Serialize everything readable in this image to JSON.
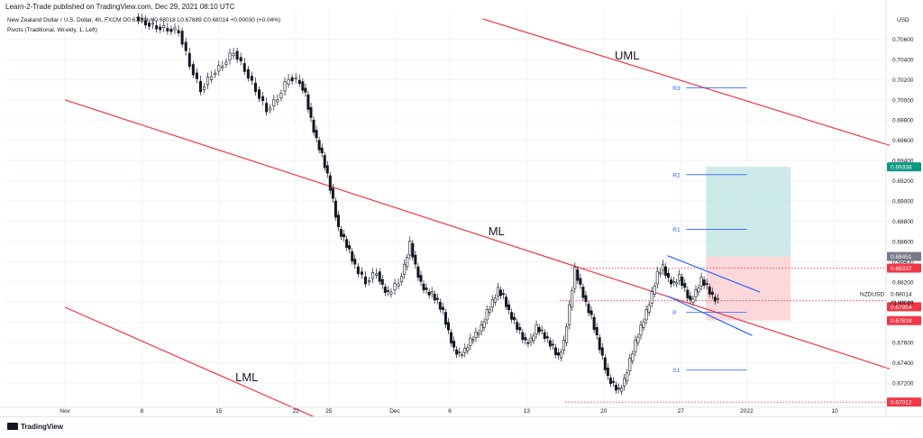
{
  "header": {
    "published": "Learn-2-Trade published on TradingView.com, Dec 29, 2021 08:10 UTC",
    "symbol_line": "New Zealand Dollar / U.S. Dollar, 4h, FXCM",
    "ohlc": "O0.67984  H0.68018  L0.67889  C0.68014  +0.00030 (+0.04%)",
    "indicator": "Pivots (Traditional, Weekly, 1, Left)"
  },
  "footer": {
    "brand": "TradingView"
  },
  "chart_data": {
    "type": "candlestick",
    "currency_label": "USD",
    "ylim": [
      0.6696,
      0.7088
    ],
    "y_ticks": [
      "0.70600",
      "0.70400",
      "0.70200",
      "0.70000",
      "0.69800",
      "0.69600",
      "0.69400",
      "0.69200",
      "0.69000",
      "0.68800",
      "0.68600",
      "0.68400",
      "0.68200",
      "0.68000",
      "0.67800",
      "0.67600",
      "0.67400",
      "0.67200"
    ],
    "x_ticks": [
      {
        "label": "Nov",
        "day": 0
      },
      {
        "label": "8",
        "day": 7
      },
      {
        "label": "15",
        "day": 14
      },
      {
        "label": "22",
        "day": 21
      },
      {
        "label": "25",
        "day": 24
      },
      {
        "label": "Dec",
        "day": 30
      },
      {
        "label": "6",
        "day": 35
      },
      {
        "label": "13",
        "day": 42
      },
      {
        "label": "20",
        "day": 49
      },
      {
        "label": "27",
        "day": 56
      },
      {
        "label": "2022",
        "day": 62
      },
      {
        "label": "10",
        "day": 70
      }
    ],
    "price_points": [
      [
        6.5,
        0.7076
      ],
      [
        7.5,
        0.7072
      ],
      [
        8.5,
        0.707
      ],
      [
        9.5,
        0.7068
      ],
      [
        10.5,
        0.7035
      ],
      [
        11.5,
        0.701
      ],
      [
        12.5,
        0.7025
      ],
      [
        13.5,
        0.7035
      ],
      [
        14.5,
        0.7048
      ],
      [
        15.5,
        0.703
      ],
      [
        16.5,
        0.701
      ],
      [
        17.5,
        0.699
      ],
      [
        18.5,
        0.7002
      ],
      [
        19.5,
        0.7022
      ],
      [
        20.5,
        0.7018
      ],
      [
        21.5,
        0.7005
      ],
      [
        22.0,
        0.698
      ],
      [
        22.5,
        0.696
      ],
      [
        23.0,
        0.6945
      ],
      [
        23.5,
        0.6925
      ],
      [
        24.0,
        0.69
      ],
      [
        24.5,
        0.6872
      ],
      [
        25.0,
        0.6862
      ],
      [
        25.5,
        0.685
      ],
      [
        26.0,
        0.6835
      ],
      [
        26.5,
        0.682
      ],
      [
        27.5,
        0.683
      ],
      [
        28.5,
        0.6815
      ],
      [
        29.0,
        0.6808
      ],
      [
        29.5,
        0.682
      ],
      [
        30.5,
        0.6835
      ],
      [
        31.0,
        0.6858
      ],
      [
        31.5,
        0.6835
      ],
      [
        32.0,
        0.6818
      ],
      [
        32.5,
        0.681
      ],
      [
        33.0,
        0.6808
      ],
      [
        33.5,
        0.68
      ],
      [
        34.0,
        0.679
      ],
      [
        34.5,
        0.677
      ],
      [
        35.0,
        0.6753
      ],
      [
        35.5,
        0.6748
      ],
      [
        36.0,
        0.6752
      ],
      [
        36.5,
        0.6762
      ],
      [
        37.0,
        0.6768
      ],
      [
        37.5,
        0.6775
      ],
      [
        38.0,
        0.679
      ],
      [
        38.5,
        0.68
      ],
      [
        39.0,
        0.6812
      ],
      [
        39.5,
        0.6805
      ],
      [
        40.0,
        0.679
      ],
      [
        40.5,
        0.678
      ],
      [
        41.0,
        0.677
      ],
      [
        41.5,
        0.676
      ],
      [
        42.0,
        0.6762
      ],
      [
        42.5,
        0.6775
      ],
      [
        43.0,
        0.677
      ],
      [
        43.5,
        0.6762
      ],
      [
        44.0,
        0.6755
      ],
      [
        44.5,
        0.6745
      ],
      [
        45.0,
        0.676
      ],
      [
        45.5,
        0.6795
      ],
      [
        46.0,
        0.6832
      ],
      [
        46.5,
        0.6815
      ],
      [
        47.0,
        0.6798
      ],
      [
        47.5,
        0.6785
      ],
      [
        48.0,
        0.6765
      ],
      [
        48.5,
        0.6745
      ],
      [
        49.0,
        0.6725
      ],
      [
        49.5,
        0.6718
      ],
      [
        50.0,
        0.6712
      ],
      [
        50.5,
        0.6722
      ],
      [
        51.0,
        0.6742
      ],
      [
        51.5,
        0.676
      ],
      [
        52.0,
        0.6775
      ],
      [
        52.5,
        0.679
      ],
      [
        53.0,
        0.6808
      ],
      [
        53.5,
        0.6828
      ],
      [
        54.0,
        0.6835
      ],
      [
        54.5,
        0.6822
      ],
      [
        55.0,
        0.6818
      ],
      [
        55.5,
        0.6825
      ],
      [
        56.0,
        0.6812
      ],
      [
        56.5,
        0.68
      ],
      [
        57.0,
        0.681
      ],
      [
        57.5,
        0.6822
      ],
      [
        58.0,
        0.6815
      ],
      [
        58.5,
        0.6805
      ],
      [
        59.0,
        0.6801
      ]
    ],
    "horizontal_lines": [
      {
        "name": "high",
        "value": 0.68337,
        "x_from_day": 46.0,
        "x_to_day": 72,
        "color": "#f23645",
        "style": "dotted"
      },
      {
        "name": "current",
        "value": 0.68014,
        "x_from_day": 45,
        "x_to_day": 72,
        "color": "#f23645",
        "style": "dotted"
      },
      {
        "name": "low",
        "value": 0.67012,
        "x_from_day": 45.5,
        "x_to_day": 72,
        "color": "#f23645",
        "style": "dotted"
      }
    ],
    "pivots": [
      {
        "label": "R3",
        "value": 0.7012
      },
      {
        "label": "R2",
        "value": 0.6926
      },
      {
        "label": "R1",
        "value": 0.6872
      },
      {
        "label": "P",
        "value": 0.679
      },
      {
        "label": "S1",
        "value": 0.6733
      }
    ],
    "pivot_range_days": [
      56.5,
      62
    ],
    "pitchfork": {
      "color": "#f23645",
      "UML": [
        [
          38,
          0.708
        ],
        [
          75,
          0.6955
        ]
      ],
      "ML": [
        [
          0,
          0.7
        ],
        [
          75,
          0.6734
        ]
      ],
      "LML": [
        [
          0,
          0.6795
        ],
        [
          25.5,
          0.6673
        ]
      ],
      "labels": [
        {
          "text": "UML",
          "day": 50,
          "value": 0.704
        },
        {
          "text": "ML",
          "day": 38.5,
          "value": 0.6866
        },
        {
          "text": "LML",
          "day": 15.5,
          "value": 0.6722
        }
      ]
    },
    "channel": {
      "color": "#2962ff",
      "upper": [
        [
          54.8,
          0.6846
        ],
        [
          63.2,
          0.681
        ]
      ],
      "lower": [
        [
          54.8,
          0.6806
        ],
        [
          62.5,
          0.6767
        ]
      ]
    },
    "position": {
      "x_from_day": 58.3,
      "x_to_day": 66.0,
      "entry": 0.68451,
      "target": 0.69338,
      "stop": 0.67818
    },
    "price_labels": [
      {
        "text": "0.69338",
        "value": 0.69338,
        "bg": "#089981",
        "color": "#ffffff"
      },
      {
        "text": "0.68451",
        "value": 0.68451,
        "bg": "#787b86",
        "color": "#ffffff"
      },
      {
        "text": "0.68337",
        "value": 0.68337,
        "bg": "#f23645",
        "color": "#ffffff"
      },
      {
        "text": "0.67954",
        "value": 0.67954,
        "bg": "#f23645",
        "color": "#ffffff"
      },
      {
        "text": "0.67818",
        "value": 0.67818,
        "bg": "#f23645",
        "color": "#ffffff"
      },
      {
        "text": "0.67012",
        "value": 0.67012,
        "bg": "#f23645",
        "color": "#ffffff"
      }
    ],
    "symbol_tag": {
      "text": "NZDUSD",
      "price": "0.68014",
      "countdown": "01:49:49",
      "value": 0.68014
    },
    "colors": {
      "up": "#131722",
      "down": "#131722",
      "wick": "#131722",
      "target_fill": "#b2dfdb",
      "stop_fill": "#fccbcd",
      "grid": "#f0f3fa"
    }
  }
}
